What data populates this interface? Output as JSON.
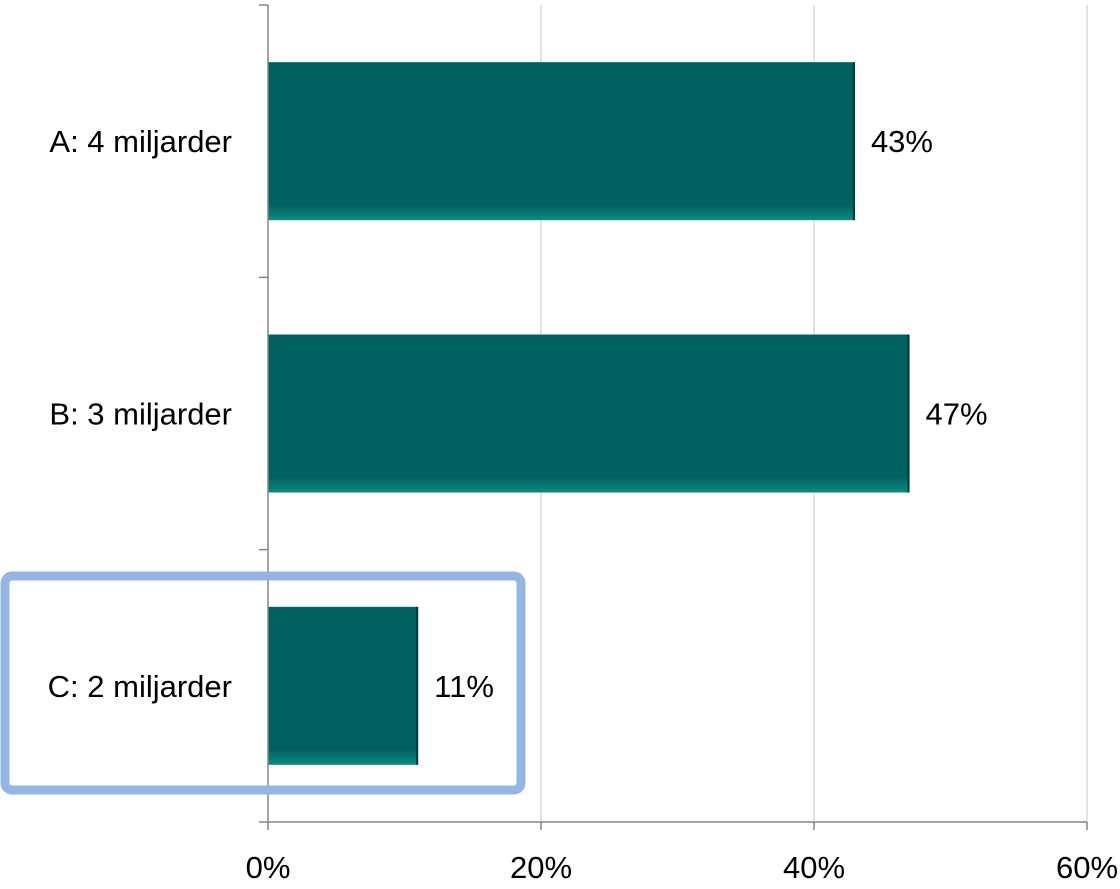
{
  "chart_data": {
    "type": "bar",
    "orientation": "horizontal",
    "categories": [
      "A: 4 miljarder",
      "B: 3 miljarder",
      "C: 2 miljarder"
    ],
    "values": [
      43,
      47,
      11
    ],
    "data_labels": [
      "43%",
      "47%",
      "11%"
    ],
    "xlim": [
      0,
      60
    ],
    "x_ticks": [
      0,
      20,
      40,
      60
    ],
    "x_tick_labels": [
      "0%",
      "20%",
      "40%",
      "60%"
    ],
    "grid": "vertical",
    "highlighted_category": "C: 2 miljarder",
    "colors": {
      "bar": "#00615e",
      "bar_edge": "#0d8a83",
      "grid": "#d9d9d9",
      "axis": "#868686",
      "highlight_box": "#95b6e3"
    }
  }
}
